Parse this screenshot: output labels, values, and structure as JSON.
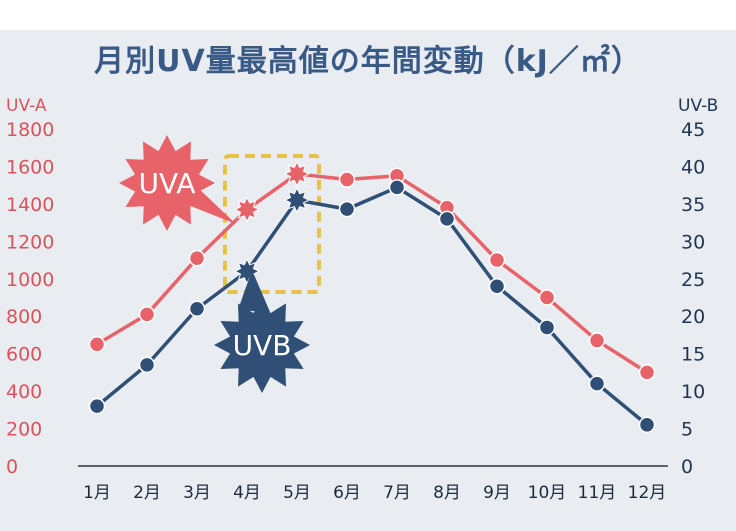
{
  "title": "月別UV量最高値の年間変動（kJ／㎡）",
  "left_axis_label": "UV-A",
  "right_axis_label": "UV-B",
  "badges": {
    "uva": "UVA",
    "uvb": "UVB"
  },
  "colors": {
    "uva": "#e86369",
    "uvb": "#2f4f77",
    "highlight": "#e7c24a",
    "left_ticks": "#d9545a",
    "right_ticks": "#1f3552"
  },
  "chart_data": {
    "type": "line",
    "categories": [
      "1月",
      "2月",
      "3月",
      "4月",
      "5月",
      "6月",
      "7月",
      "8月",
      "9月",
      "10月",
      "11月",
      "12月"
    ],
    "series": [
      {
        "name": "UVA",
        "axis": "left",
        "values": [
          650,
          810,
          1110,
          1370,
          1560,
          1530,
          1550,
          1380,
          1100,
          900,
          670,
          500
        ]
      },
      {
        "name": "UVB",
        "axis": "right",
        "values": [
          8,
          13.5,
          21,
          26,
          35.5,
          34.3,
          37.2,
          33,
          24,
          18.5,
          11,
          5.5
        ]
      }
    ],
    "ylim_left": [
      0,
      1800
    ],
    "yticks_left": [
      0,
      200,
      400,
      600,
      800,
      1000,
      1200,
      1400,
      1600,
      1800
    ],
    "ylim_right": [
      0,
      45
    ],
    "yticks_right": [
      0,
      5,
      10,
      15,
      20,
      25,
      30,
      35,
      40,
      45
    ],
    "grid": false,
    "highlight_months": [
      "4月",
      "5月"
    ]
  }
}
